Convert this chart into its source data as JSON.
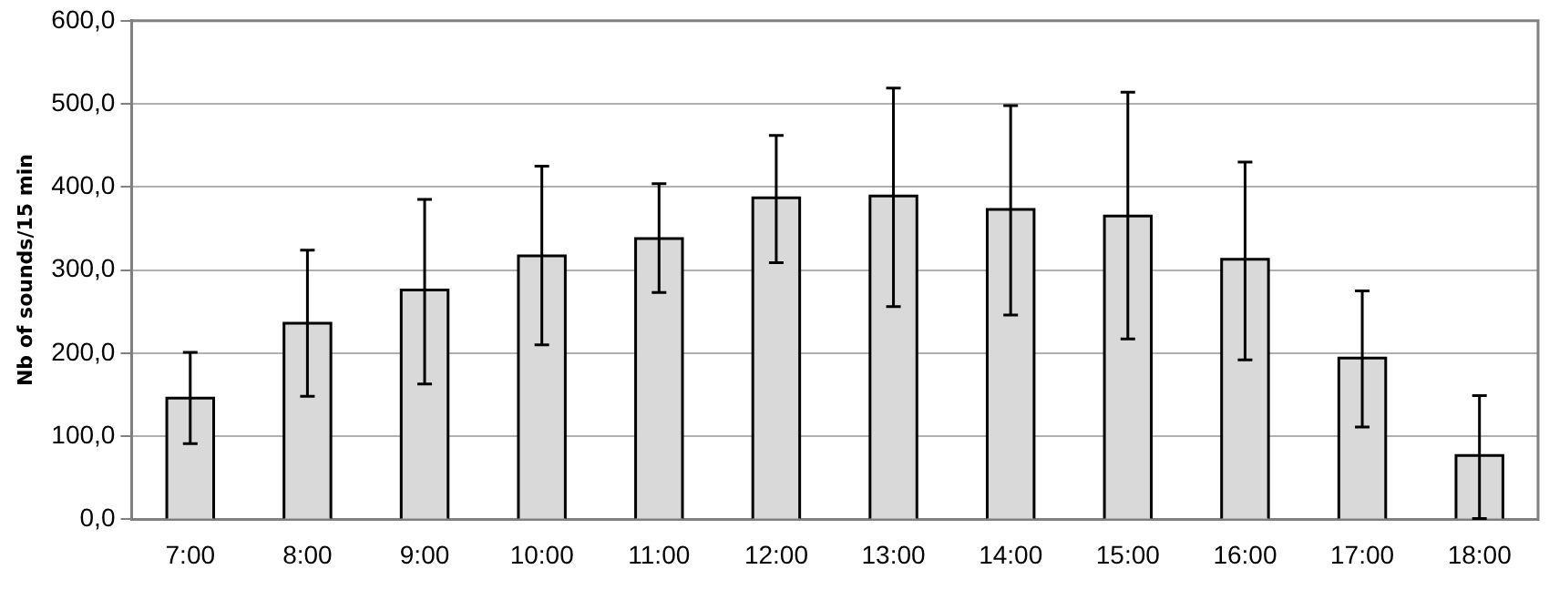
{
  "chart_data": {
    "type": "bar",
    "ylabel": "Nb of sounds/15 min",
    "categories": [
      "7:00",
      "8:00",
      "9:00",
      "10:00",
      "11:00",
      "12:00",
      "13:00",
      "14:00",
      "15:00",
      "16:00",
      "17:00",
      "18:00"
    ],
    "values": [
      146,
      236,
      276,
      317,
      338,
      387,
      389,
      373,
      365,
      313,
      194,
      77
    ],
    "errors": [
      [
        91,
        201
      ],
      [
        148,
        324
      ],
      [
        163,
        385
      ],
      [
        210,
        425
      ],
      [
        273,
        404
      ],
      [
        309,
        462
      ],
      [
        256,
        519
      ],
      [
        246,
        498
      ],
      [
        217,
        514
      ],
      [
        192,
        430
      ],
      [
        111,
        275
      ],
      [
        1,
        149
      ]
    ],
    "color": "#d9d9d9",
    "ylim": [
      0,
      600
    ],
    "yticks": [
      {
        "value": 0,
        "label": "0,0"
      },
      {
        "value": 100,
        "label": "100,0"
      },
      {
        "value": 200,
        "label": "200,0"
      },
      {
        "value": 300,
        "label": "300,0"
      },
      {
        "value": 400,
        "label": "400,0"
      },
      {
        "value": 500,
        "label": "500,0"
      },
      {
        "value": 600,
        "label": "600,0"
      }
    ],
    "grid": "y",
    "legend": false
  }
}
